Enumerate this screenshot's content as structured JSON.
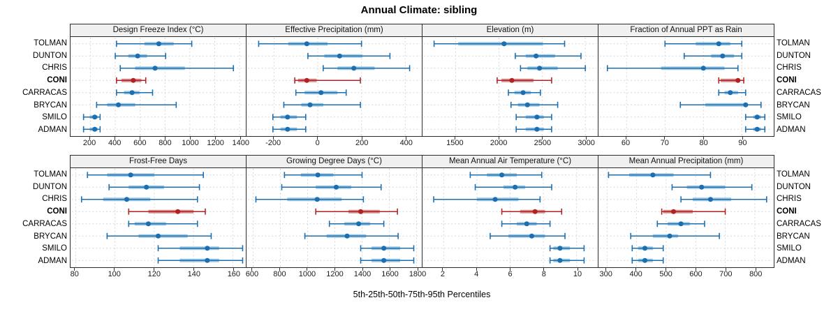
{
  "title": "Annual Climate: sibling",
  "xlabel": "5th-25th-50th-75th-95th Percentiles",
  "stations": [
    "TOLMAN",
    "DUNTON",
    "CHRIS",
    "CONI",
    "CARRACAS",
    "BRYCAN",
    "SMILO",
    "ADMAN"
  ],
  "highlight_station": "CONI",
  "colors": {
    "normal": "#1b6eb0",
    "normal_band": "#9dc6e0",
    "highlight": "#b22222",
    "highlight_band": "#d68f8f",
    "grid": "#d6d6d6",
    "panel_border": "#2b2b2b",
    "strip_bg": "#f0f0f0"
  },
  "chart_data": {
    "type": "percentile-dotplot",
    "percentiles": [
      "5th",
      "25th",
      "50th",
      "75th",
      "95th"
    ],
    "layout": "2 rows x 4 cols, shared station axis, grid dotted",
    "panels": [
      {
        "title": "Design Freeze Index (°C)",
        "row": 0,
        "col": 0,
        "xlim": [
          50,
          1440
        ],
        "ticks": [
          200,
          400,
          600,
          800,
          1000,
          1200,
          1400
        ],
        "series": {
          "TOLMAN": [
            410,
            635,
            750,
            870,
            1015
          ],
          "DUNTON": [
            400,
            505,
            580,
            655,
            805
          ],
          "CHRIS": [
            440,
            560,
            720,
            960,
            1350
          ],
          "CONI": [
            410,
            450,
            545,
            610,
            645
          ],
          "CARRACAS": [
            410,
            470,
            535,
            595,
            700
          ],
          "BRYCAN": [
            250,
            335,
            425,
            560,
            890
          ],
          "SMILO": [
            145,
            195,
            235,
            258,
            278
          ],
          "ADMAN": [
            145,
            195,
            235,
            258,
            278
          ]
        }
      },
      {
        "title": "Effective Precipitation (mm)",
        "row": 0,
        "col": 1,
        "xlim": [
          -320,
          470
        ],
        "ticks": [
          -200,
          0,
          200,
          400
        ],
        "series": {
          "TOLMAN": [
            -270,
            -135,
            -50,
            45,
            200
          ],
          "DUNTON": [
            -45,
            30,
            100,
            205,
            330
          ],
          "CHRIS": [
            25,
            90,
            165,
            260,
            420
          ],
          "CONI": [
            -105,
            -90,
            -50,
            -5,
            195
          ],
          "CARRACAS": [
            -100,
            -60,
            15,
            90,
            130
          ],
          "BRYCAN": [
            -155,
            -75,
            -35,
            25,
            195
          ],
          "SMILO": [
            -205,
            -170,
            -138,
            -95,
            -55
          ],
          "ADMAN": [
            -205,
            -170,
            -138,
            -95,
            -55
          ]
        }
      },
      {
        "title": "Elevation (m)",
        "row": 0,
        "col": 2,
        "xlim": [
          1130,
          3130
        ],
        "ticks": [
          1500,
          2000,
          2500,
          3000
        ],
        "series": {
          "TOLMAN": [
            1250,
            1530,
            2060,
            2510,
            2760
          ],
          "DUNTON": [
            2190,
            2310,
            2430,
            2650,
            2950
          ],
          "CHRIS": [
            2250,
            2330,
            2470,
            2680,
            3000
          ],
          "CONI": [
            1980,
            2030,
            2150,
            2400,
            2610
          ],
          "CARRACAS": [
            2110,
            2180,
            2280,
            2370,
            2480
          ],
          "BRYCAN": [
            2140,
            2220,
            2330,
            2470,
            2680
          ],
          "SMILO": [
            2200,
            2310,
            2440,
            2520,
            2610
          ],
          "ADMAN": [
            2200,
            2310,
            2440,
            2520,
            2610
          ]
        }
      },
      {
        "title": "Fraction of Annual PPT as Rain",
        "row": 0,
        "col": 3,
        "xlim": [
          53,
          98
        ],
        "ticks": [
          60,
          70,
          80,
          90
        ],
        "series": {
          "TOLMAN": [
            70,
            78,
            84,
            87,
            90
          ],
          "DUNTON": [
            75,
            82,
            85,
            88,
            90
          ],
          "CHRIS": [
            55,
            69,
            80,
            85.5,
            89
          ],
          "CONI": [
            84,
            84.5,
            89,
            89.5,
            90.5
          ],
          "CARRACAS": [
            84,
            85.5,
            87,
            89,
            91
          ],
          "BRYCAN": [
            74,
            80.5,
            91,
            91.5,
            95
          ],
          "SMILO": [
            91,
            93,
            94,
            95,
            96
          ],
          "ADMAN": [
            91,
            93,
            94,
            95,
            96
          ]
        }
      },
      {
        "title": "Frost-Free Days",
        "row": 1,
        "col": 0,
        "xlim": [
          78,
          166
        ],
        "ticks": [
          80,
          100,
          120,
          140,
          160
        ],
        "series": {
          "TOLMAN": [
            86,
            96,
            108,
            120,
            145
          ],
          "DUNTON": [
            97,
            107,
            116,
            125,
            143
          ],
          "CHRIS": [
            83,
            94,
            106,
            118,
            142
          ],
          "CONI": [
            107,
            117,
            132,
            140,
            146
          ],
          "CARRACAS": [
            107,
            110,
            117,
            126,
            142
          ],
          "BRYCAN": [
            96,
            112,
            122,
            137,
            149
          ],
          "SMILO": [
            122,
            133,
            147,
            153,
            165
          ],
          "ADMAN": [
            122,
            133,
            147,
            153,
            165
          ]
        }
      },
      {
        "title": "Growing Degree Days (°C)",
        "row": 1,
        "col": 1,
        "xlim": [
          560,
          1830
        ],
        "ticks": [
          600,
          800,
          1000,
          1200,
          1400,
          1600,
          1800
        ],
        "series": {
          "TOLMAN": [
            830,
            950,
            1075,
            1190,
            1400
          ],
          "DUNTON": [
            810,
            1060,
            1210,
            1320,
            1540
          ],
          "CHRIS": [
            620,
            850,
            1070,
            1250,
            1410
          ],
          "CONI": [
            1060,
            1300,
            1390,
            1530,
            1660
          ],
          "CARRACAS": [
            1160,
            1270,
            1375,
            1460,
            1560
          ],
          "BRYCAN": [
            980,
            1140,
            1290,
            1430,
            1665
          ],
          "SMILO": [
            1390,
            1470,
            1560,
            1680,
            1780
          ],
          "ADMAN": [
            1390,
            1470,
            1560,
            1680,
            1780
          ]
        }
      },
      {
        "title": "Mean Annual Air Temperature (°C)",
        "row": 1,
        "col": 2,
        "xlim": [
          0.8,
          11.2
        ],
        "ticks": [
          2,
          4,
          6,
          8,
          10
        ],
        "series": {
          "TOLMAN": [
            3.6,
            4.6,
            5.5,
            6.4,
            7.9
          ],
          "DUNTON": [
            3.9,
            5.6,
            6.3,
            6.9,
            8.5
          ],
          "CHRIS": [
            1.4,
            4.0,
            5.1,
            6.5,
            7.8
          ],
          "CONI": [
            5.5,
            6.6,
            7.5,
            8.1,
            9.1
          ],
          "CARRACAS": [
            5.5,
            6.4,
            7.0,
            7.6,
            8.4
          ],
          "BRYCAN": [
            4.8,
            5.9,
            7.3,
            8.1,
            9.3
          ],
          "SMILO": [
            8.4,
            8.6,
            9.0,
            9.6,
            10.45
          ],
          "ADMAN": [
            8.4,
            8.6,
            9.0,
            9.6,
            10.45
          ]
        }
      },
      {
        "title": "Mean Annual Precipitation (mm)",
        "row": 1,
        "col": 3,
        "xlim": [
          275,
          860
        ],
        "ticks": [
          300,
          400,
          500,
          600,
          700,
          800
        ],
        "series": {
          "TOLMAN": [
            305,
            375,
            455,
            525,
            650
          ],
          "DUNTON": [
            520,
            570,
            620,
            700,
            790
          ],
          "CHRIS": [
            550,
            590,
            650,
            720,
            840
          ],
          "CONI": [
            485,
            490,
            525,
            590,
            700
          ],
          "CARRACAS": [
            470,
            505,
            550,
            580,
            630
          ],
          "BRYCAN": [
            380,
            455,
            512,
            540,
            680
          ],
          "SMILO": [
            385,
            405,
            428,
            455,
            490
          ],
          "ADMAN": [
            385,
            405,
            428,
            455,
            490
          ]
        }
      }
    ]
  }
}
